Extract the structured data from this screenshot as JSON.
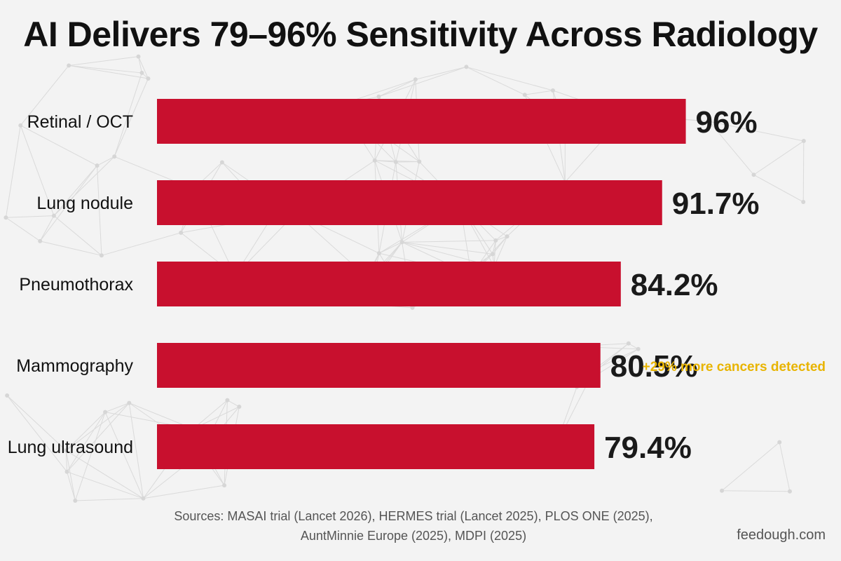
{
  "title": "AI Delivers 79–96% Sensitivity Across Radiology",
  "chart_data": {
    "type": "bar",
    "orientation": "horizontal",
    "categories": [
      "Retinal / OCT",
      "Lung nodule",
      "Pneumothorax",
      "Mammography",
      "Lung ultrasound"
    ],
    "values": [
      96,
      91.7,
      84.2,
      80.5,
      79.4
    ],
    "value_labels": [
      "96%",
      "91.7%",
      "84.2%",
      "80.5%",
      "79.4%"
    ],
    "annotations": [
      {
        "category": "Mammography",
        "text": "+29% more cancers detected"
      }
    ],
    "xlabel": "",
    "ylabel": "",
    "grid": false,
    "legend": "none",
    "bar_color": "#c8102e",
    "annotation_color": "#e8b400"
  },
  "sources": {
    "line1": "Sources: MASAI trial (Lancet 2026), HERMES trial (Lancet 2025), PLOS ONE (2025),",
    "line2": "AuntMinnie Europe (2025), MDPI (2025)"
  },
  "credit": "feedough.com"
}
